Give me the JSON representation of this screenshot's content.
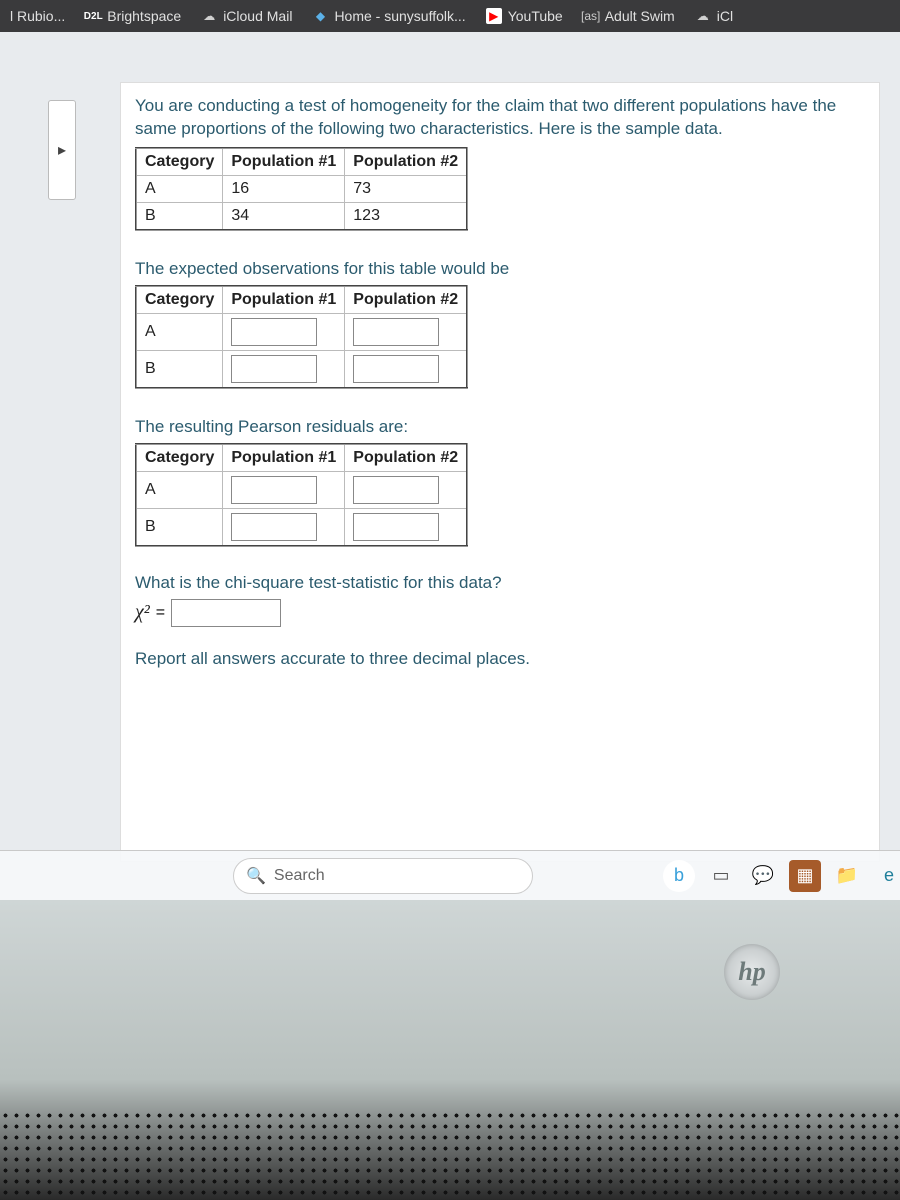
{
  "bookmarks": [
    {
      "label": "l Rubio...",
      "icon": ""
    },
    {
      "label": "Brightspace",
      "icon": "D2L"
    },
    {
      "label": "iCloud Mail",
      "icon": "☁"
    },
    {
      "label": "Home - sunysuffolk...",
      "icon": "◆"
    },
    {
      "label": "YouTube",
      "icon": "▶"
    },
    {
      "label": "Adult Swim",
      "icon": "[as]"
    },
    {
      "label": "iCl",
      "icon": "☁"
    }
  ],
  "left_tab_glyph": "▸",
  "question": {
    "intro": "You are conducting a test of homogeneity for the claim that two different populations have the same proportions of the following two characteristics. Here is the sample data.",
    "table1": {
      "headers": [
        "Category",
        "Population #1",
        "Population #2"
      ],
      "rows": [
        [
          "A",
          "16",
          "73"
        ],
        [
          "B",
          "34",
          "123"
        ]
      ]
    },
    "expected_label": "The expected observations for this table would be",
    "table2": {
      "headers": [
        "Category",
        "Population #1",
        "Population #2"
      ],
      "rows": [
        [
          "A",
          "",
          ""
        ],
        [
          "B",
          "",
          ""
        ]
      ]
    },
    "residuals_label": "The resulting Pearson residuals are:",
    "table3": {
      "headers": [
        "Category",
        "Population #1",
        "Population #2"
      ],
      "rows": [
        [
          "A",
          "",
          ""
        ],
        [
          "B",
          "",
          ""
        ]
      ]
    },
    "chi_q": "What is the chi-square test-statistic for this data?",
    "chi_sym": "χ²",
    "eq": " = ",
    "note": "Report all answers accurate to three decimal places."
  },
  "taskbar": {
    "search_placeholder": "Search",
    "icons": [
      {
        "name": "bing-icon",
        "glyph": "b",
        "bg": "#fff",
        "color": "#38a0da",
        "round": "50%"
      },
      {
        "name": "taskview-icon",
        "glyph": "▭",
        "bg": "transparent",
        "color": "#555"
      },
      {
        "name": "chat-icon",
        "glyph": "💬",
        "bg": "transparent",
        "color": "#4a8"
      },
      {
        "name": "app1-icon",
        "glyph": "▦",
        "bg": "#a65b2a",
        "color": "#fff"
      },
      {
        "name": "explorer-icon",
        "glyph": "📁",
        "bg": "transparent",
        "color": "#e7b95a"
      },
      {
        "name": "edge-icon",
        "glyph": "e",
        "bg": "transparent",
        "color": "#1f7f9b"
      }
    ]
  },
  "hp": "hp",
  "colors": {
    "bookmark_bg": "#3a3a3c",
    "card_bg": "#ffffff",
    "body_bg": "#e8ebee",
    "link_text": "#2b5b6e"
  }
}
